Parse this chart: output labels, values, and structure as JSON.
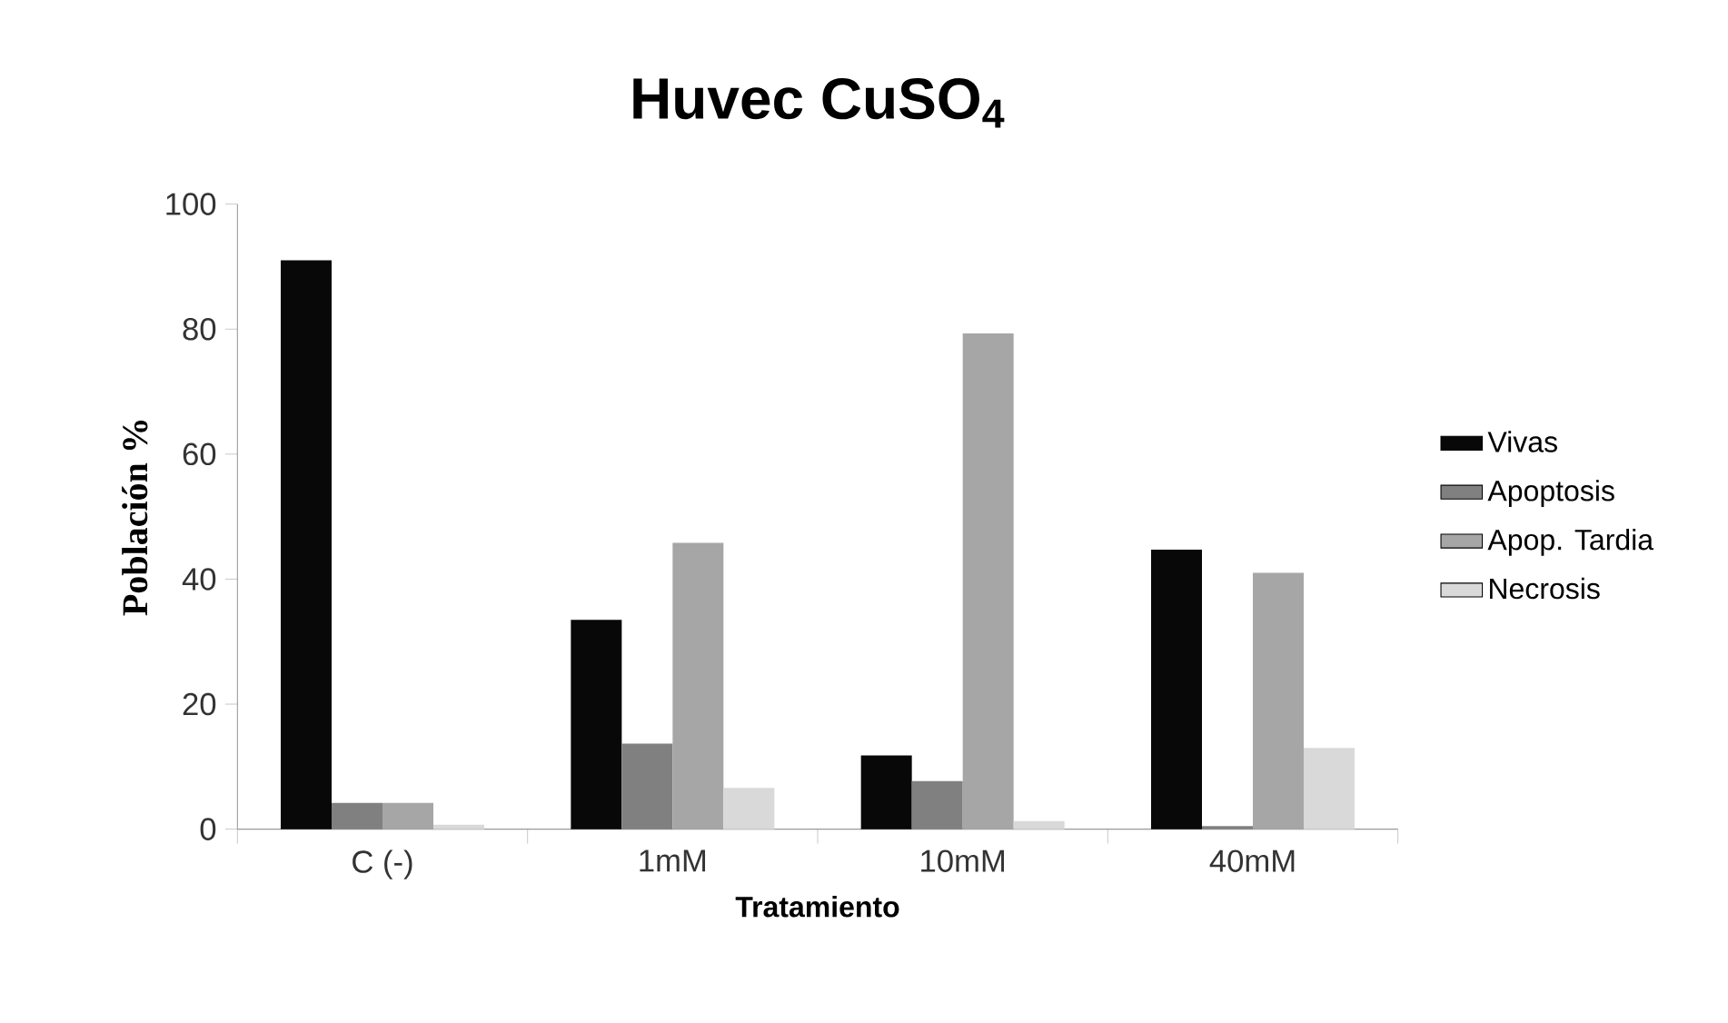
{
  "chart_data": {
    "type": "bar",
    "title": "Huvec CuSO$_{4}$",
    "xlabel": "Tratamiento",
    "ylabel": "Población %",
    "categories": [
      "C (-)",
      "1mM",
      "10mM",
      "40mM"
    ],
    "series": [
      {
        "name": "Vivas",
        "color": "#080808",
        "values": [
          91,
          33.5,
          11.8,
          44.7
        ]
      },
      {
        "name": "Apoptosis",
        "color": "#808080",
        "values": [
          4.2,
          13.7,
          7.7,
          0.5
        ]
      },
      {
        "name": "Apop. Tardia",
        "color": "#a6a6a6",
        "values": [
          4.2,
          45.8,
          79.3,
          41
        ]
      },
      {
        "name": "Necrosis",
        "color": "#d9d9d9",
        "values": [
          0.7,
          6.6,
          1.3,
          13
        ]
      }
    ],
    "ylim": [
      0,
      100
    ],
    "yticks": [
      0,
      20,
      40,
      60,
      80,
      100
    ],
    "grid": false,
    "legend": "right"
  }
}
